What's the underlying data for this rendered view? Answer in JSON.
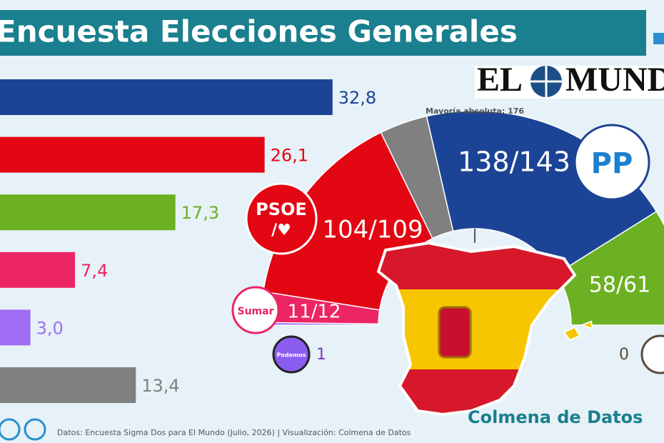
{
  "header": {
    "title": "Encuesta Elecciones Generales"
  },
  "chart_data": {
    "type": "bar",
    "orientation": "horizontal",
    "categories": [
      null,
      null,
      null,
      null,
      null,
      null
    ],
    "values": [
      32.8,
      26.1,
      17.3,
      7.4,
      3.0,
      13.4
    ],
    "value_labels": [
      "32,8",
      "26,1",
      "17,3",
      "7,4",
      "3,0",
      "13,4"
    ],
    "colors": [
      "#1c4496",
      "#e30613",
      "#6cb023",
      "#ec2565",
      "#9f6cf3",
      "#808080"
    ]
  },
  "hemicycle": {
    "majority_label": "Mayoría absoluta: 176",
    "labels": {
      "pp": "138/143",
      "psoe": "104/109",
      "vox": "58/61",
      "sumar": "11/12",
      "podemos": "1",
      "other": "0"
    }
  },
  "logos": {
    "el": "EL",
    "mundo": "MUNDO",
    "psoe": "PSOE",
    "pp": "PP",
    "sumar": "Sumar",
    "podemos": "Podemos",
    "colmena": "Colmena de Datos"
  },
  "footer": {
    "source": "Datos: Encuesta Sigma Dos para El Mundo (Julio, 2026) | Visualización: Colmena de Datos"
  }
}
